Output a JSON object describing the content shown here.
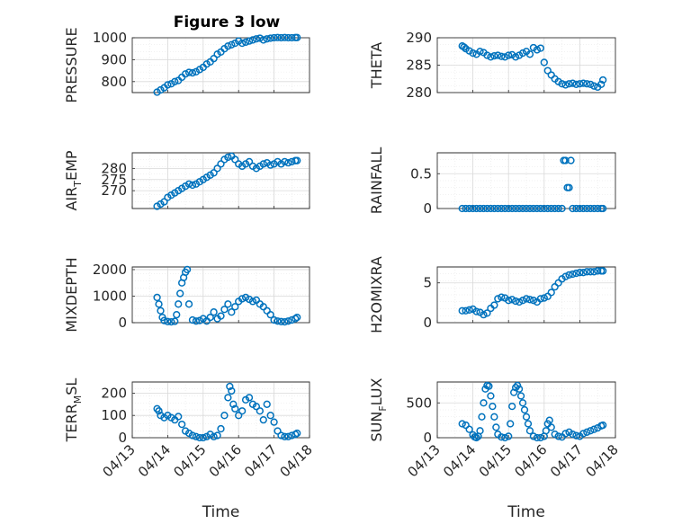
{
  "figure_title": "Figure 3 low",
  "x_axis_label": "Time",
  "x_tick_labels": [
    "04/13",
    "04/14",
    "04/15",
    "04/16",
    "04/17",
    "04/18"
  ],
  "marker_color": "#0072BD",
  "chart_data": [
    {
      "type": "scatter",
      "id": "pressure",
      "title": "Figure 3 low",
      "ylabel": "PRESSURE",
      "ylabel_sub": null,
      "xlabel": "",
      "xlim": [
        0,
        5
      ],
      "ylim": [
        750,
        1000
      ],
      "yticks": [
        800,
        900,
        1000
      ],
      "grid": true,
      "minor_grid": true,
      "x": [
        0.7,
        0.8,
        0.9,
        1.0,
        1.1,
        1.2,
        1.3,
        1.4,
        1.5,
        1.6,
        1.7,
        1.8,
        1.9,
        2.0,
        2.1,
        2.2,
        2.3,
        2.4,
        2.5,
        2.6,
        2.7,
        2.8,
        2.9,
        3.0,
        3.1,
        3.2,
        3.3,
        3.4,
        3.5,
        3.6,
        3.7,
        3.8,
        3.9,
        4.0,
        4.1,
        4.2,
        4.3,
        4.4,
        4.5,
        4.6,
        4.65
      ],
      "y": [
        752,
        762,
        772,
        785,
        790,
        800,
        805,
        820,
        835,
        842,
        840,
        845,
        855,
        865,
        880,
        890,
        905,
        925,
        935,
        950,
        962,
        968,
        975,
        985,
        975,
        980,
        985,
        990,
        995,
        998,
        990,
        995,
        998,
        1000,
        1001,
        1000,
        1001,
        1000,
        1000,
        1001,
        1001
      ]
    },
    {
      "type": "scatter",
      "id": "theta",
      "ylabel": "THETA",
      "ylabel_sub": null,
      "xlabel": "",
      "xlim": [
        0,
        5
      ],
      "ylim": [
        280,
        290
      ],
      "yticks": [
        280,
        285,
        290
      ],
      "grid": true,
      "minor_grid": true,
      "x": [
        0.7,
        0.75,
        0.8,
        0.9,
        1.0,
        1.1,
        1.2,
        1.3,
        1.4,
        1.5,
        1.6,
        1.7,
        1.8,
        1.9,
        2.0,
        2.1,
        2.2,
        2.3,
        2.4,
        2.5,
        2.6,
        2.7,
        2.8,
        2.9,
        3.0,
        3.1,
        3.2,
        3.3,
        3.4,
        3.5,
        3.6,
        3.7,
        3.8,
        3.9,
        4.0,
        4.1,
        4.2,
        4.3,
        4.4,
        4.5,
        4.6,
        4.65
      ],
      "y": [
        288.5,
        288.3,
        288.0,
        287.6,
        287.2,
        287.0,
        287.5,
        287.3,
        286.8,
        286.5,
        286.7,
        286.8,
        286.6,
        286.5,
        286.8,
        286.9,
        286.5,
        286.8,
        287.2,
        287.5,
        287.0,
        288.2,
        287.8,
        288.1,
        285.5,
        284.0,
        283.2,
        282.5,
        282.0,
        281.6,
        281.4,
        281.6,
        281.7,
        281.5,
        281.6,
        281.7,
        281.6,
        281.5,
        281.2,
        281.0,
        281.5,
        282.3
      ]
    },
    {
      "type": "scatter",
      "id": "air_temp",
      "ylabel": "AIR",
      "ylabel_sub": "T",
      "ylabel_after": "EMP",
      "xlabel": "",
      "xlim": [
        0,
        5
      ],
      "ylim": [
        262,
        287
      ],
      "yticks": [
        270,
        275,
        280
      ],
      "grid": true,
      "minor_grid": true,
      "x": [
        0.7,
        0.8,
        0.9,
        1.0,
        1.1,
        1.2,
        1.3,
        1.4,
        1.5,
        1.6,
        1.7,
        1.8,
        1.9,
        2.0,
        2.1,
        2.2,
        2.3,
        2.4,
        2.5,
        2.6,
        2.7,
        2.8,
        2.9,
        3.0,
        3.1,
        3.2,
        3.3,
        3.4,
        3.5,
        3.6,
        3.7,
        3.8,
        3.9,
        4.0,
        4.1,
        4.2,
        4.3,
        4.4,
        4.5,
        4.6,
        4.65
      ],
      "y": [
        263,
        264,
        265,
        267,
        268,
        269,
        270,
        271,
        272,
        273,
        272.5,
        273,
        274,
        275,
        276,
        277,
        278,
        280,
        282,
        284,
        285,
        285.5,
        284,
        282,
        281,
        282,
        283,
        281,
        280,
        281,
        282,
        282.5,
        281.5,
        282,
        283,
        282,
        283,
        282.5,
        283,
        283.5,
        283.5
      ]
    },
    {
      "type": "scatter",
      "id": "rainfall",
      "ylabel": "RAINFALL",
      "ylabel_sub": null,
      "xlabel": "",
      "xlim": [
        0,
        5
      ],
      "ylim": [
        0,
        0.8
      ],
      "yticks": [
        0,
        0.5
      ],
      "grid": true,
      "minor_grid": true,
      "x": [
        0.7,
        0.8,
        0.9,
        1.0,
        1.1,
        1.2,
        1.3,
        1.4,
        1.5,
        1.6,
        1.7,
        1.8,
        1.9,
        2.0,
        2.1,
        2.2,
        2.3,
        2.4,
        2.5,
        2.6,
        2.7,
        2.8,
        2.9,
        3.0,
        3.1,
        3.2,
        3.3,
        3.4,
        3.5,
        3.55,
        3.6,
        3.65,
        3.7,
        3.75,
        3.8,
        3.9,
        4.0,
        4.1,
        4.2,
        4.3,
        4.4,
        4.5,
        4.6,
        4.65
      ],
      "y": [
        0,
        0,
        0,
        0,
        0,
        0,
        0,
        0,
        0,
        0,
        0,
        0,
        0,
        0,
        0,
        0,
        0,
        0,
        0,
        0,
        0,
        0,
        0,
        0,
        0,
        0,
        0,
        0,
        0,
        0.69,
        0.69,
        0.3,
        0.3,
        0.69,
        0,
        0,
        0,
        0,
        0,
        0,
        0,
        0,
        0,
        0
      ]
    },
    {
      "type": "scatter",
      "id": "mixdepth",
      "ylabel": "MIXDEPTH",
      "ylabel_sub": null,
      "xlabel": "",
      "xlim": [
        0,
        5
      ],
      "ylim": [
        0,
        2100
      ],
      "yticks": [
        0,
        1000,
        2000
      ],
      "grid": true,
      "minor_grid": true,
      "x": [
        0.7,
        0.75,
        0.8,
        0.85,
        0.9,
        1.0,
        1.1,
        1.2,
        1.25,
        1.3,
        1.35,
        1.4,
        1.45,
        1.5,
        1.55,
        1.6,
        1.7,
        1.8,
        1.9,
        2.0,
        2.1,
        2.2,
        2.3,
        2.4,
        2.5,
        2.6,
        2.7,
        2.8,
        2.9,
        3.0,
        3.1,
        3.2,
        3.3,
        3.4,
        3.5,
        3.6,
        3.7,
        3.8,
        3.9,
        4.0,
        4.1,
        4.2,
        4.3,
        4.4,
        4.5,
        4.6,
        4.65
      ],
      "y": [
        950,
        700,
        450,
        200,
        80,
        40,
        30,
        50,
        300,
        700,
        1100,
        1500,
        1700,
        1900,
        2000,
        700,
        100,
        60,
        80,
        150,
        60,
        200,
        400,
        150,
        250,
        500,
        700,
        400,
        600,
        800,
        900,
        950,
        880,
        800,
        850,
        700,
        600,
        450,
        300,
        100,
        60,
        40,
        30,
        60,
        100,
        150,
        200
      ]
    },
    {
      "type": "scatter",
      "id": "h2omixra",
      "ylabel": "H2OMIXRA",
      "ylabel_sub": null,
      "xlabel": "",
      "xlim": [
        0,
        5
      ],
      "ylim": [
        0,
        7
      ],
      "yticks": [
        0,
        5
      ],
      "grid": true,
      "minor_grid": true,
      "x": [
        0.7,
        0.8,
        0.9,
        1.0,
        1.1,
        1.2,
        1.3,
        1.4,
        1.5,
        1.6,
        1.7,
        1.8,
        1.9,
        2.0,
        2.1,
        2.2,
        2.3,
        2.4,
        2.5,
        2.6,
        2.7,
        2.8,
        2.9,
        3.0,
        3.1,
        3.2,
        3.3,
        3.4,
        3.5,
        3.6,
        3.7,
        3.8,
        3.9,
        4.0,
        4.1,
        4.2,
        4.3,
        4.4,
        4.5,
        4.6,
        4.65
      ],
      "y": [
        1.5,
        1.5,
        1.6,
        1.7,
        1.4,
        1.3,
        1.0,
        1.2,
        1.8,
        2.2,
        3.0,
        3.2,
        3.1,
        2.8,
        2.9,
        2.7,
        2.6,
        2.8,
        3.0,
        2.9,
        2.8,
        2.6,
        3.0,
        3.1,
        3.3,
        3.8,
        4.5,
        5.0,
        5.5,
        5.8,
        6.0,
        6.1,
        6.2,
        6.3,
        6.3,
        6.4,
        6.4,
        6.4,
        6.5,
        6.5,
        6.5
      ]
    },
    {
      "type": "scatter",
      "id": "terr_msl",
      "ylabel": "TERR",
      "ylabel_sub": "M",
      "ylabel_after": "SL",
      "xlabel": "Time",
      "xlim": [
        0,
        5
      ],
      "ylim": [
        0,
        250
      ],
      "yticks": [
        0,
        100,
        200
      ],
      "grid": true,
      "minor_grid": true,
      "x": [
        0.7,
        0.75,
        0.8,
        0.9,
        1.0,
        1.1,
        1.2,
        1.3,
        1.4,
        1.5,
        1.6,
        1.7,
        1.8,
        1.9,
        2.0,
        2.1,
        2.2,
        2.3,
        2.4,
        2.5,
        2.6,
        2.7,
        2.75,
        2.8,
        2.85,
        2.9,
        3.0,
        3.1,
        3.2,
        3.3,
        3.4,
        3.5,
        3.6,
        3.7,
        3.8,
        3.9,
        4.0,
        4.1,
        4.2,
        4.3,
        4.4,
        4.5,
        4.6,
        4.65
      ],
      "y": [
        130,
        120,
        100,
        90,
        100,
        90,
        80,
        95,
        60,
        30,
        20,
        10,
        5,
        0,
        0,
        5,
        15,
        5,
        10,
        40,
        100,
        180,
        230,
        210,
        150,
        130,
        100,
        120,
        170,
        180,
        150,
        140,
        120,
        80,
        150,
        100,
        70,
        30,
        10,
        5,
        5,
        10,
        15,
        20
      ]
    },
    {
      "type": "scatter",
      "id": "sun_flux",
      "ylabel": "SUN",
      "ylabel_sub": "F",
      "ylabel_after": "LUX",
      "xlabel": "Time",
      "xlim": [
        0,
        5
      ],
      "ylim": [
        0,
        800
      ],
      "yticks": [
        0,
        500
      ],
      "grid": true,
      "minor_grid": true,
      "x": [
        0.7,
        0.8,
        0.9,
        1.0,
        1.05,
        1.1,
        1.15,
        1.2,
        1.25,
        1.3,
        1.35,
        1.4,
        1.45,
        1.5,
        1.55,
        1.6,
        1.65,
        1.7,
        1.8,
        1.9,
        2.0,
        2.05,
        2.1,
        2.15,
        2.2,
        2.25,
        2.3,
        2.35,
        2.4,
        2.45,
        2.5,
        2.55,
        2.6,
        2.7,
        2.8,
        2.9,
        3.0,
        3.05,
        3.1,
        3.15,
        3.2,
        3.3,
        3.4,
        3.5,
        3.6,
        3.7,
        3.8,
        3.9,
        4.0,
        4.1,
        4.2,
        4.3,
        4.4,
        4.5,
        4.6,
        4.65
      ],
      "y": [
        200,
        180,
        120,
        40,
        10,
        0,
        20,
        100,
        300,
        500,
        700,
        750,
        740,
        600,
        450,
        300,
        150,
        50,
        10,
        0,
        20,
        200,
        450,
        650,
        720,
        750,
        700,
        600,
        500,
        400,
        300,
        200,
        100,
        20,
        0,
        0,
        20,
        100,
        200,
        250,
        150,
        50,
        20,
        10,
        60,
        80,
        50,
        30,
        20,
        60,
        80,
        100,
        120,
        140,
        170,
        180
      ]
    }
  ]
}
